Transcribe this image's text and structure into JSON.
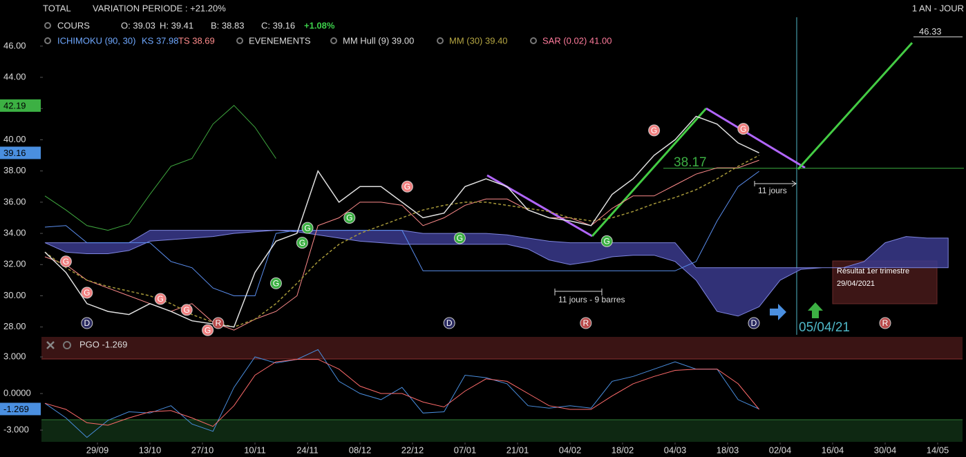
{
  "header": {
    "title": "TOTAL",
    "variation": "VARIATION PERIODE : +21.20%",
    "period": "1 AN - JOUR",
    "cours": "COURS",
    "open": "O: 39.03",
    "high": "H: 39.41",
    "low": "B: 38.83",
    "close": "C: 39.16",
    "change": "+1.08%",
    "ichimoku": "ICHIMOKU (90, 30)",
    "ks": "KS 37.98",
    "ts": "TS 38.69",
    "events": "EVENEMENTS",
    "hull": "MM Hull (9) 39.00",
    "mm": "MM (30) 39.40",
    "sar": "SAR (0.02) 41.00"
  },
  "chart_data": [
    {
      "type": "line",
      "xlim": [
        0,
        175
      ],
      "ylim": [
        27.5,
        47.85
      ],
      "yticks": [
        {
          "value": 28,
          "label": "28.00"
        },
        {
          "value": 30,
          "label": "30.00"
        },
        {
          "value": 32,
          "label": "32.00"
        },
        {
          "value": 34,
          "label": "34.00"
        },
        {
          "value": 36,
          "label": "36.00"
        },
        {
          "value": 38,
          "label": "38.00"
        },
        {
          "value": 40,
          "label": "40.00"
        },
        {
          "value": 42,
          "label": "42.00"
        },
        {
          "value": 44,
          "label": "44.00"
        },
        {
          "value": 46,
          "label": "46.00"
        }
      ],
      "grid": false,
      "x": [
        0,
        4,
        8,
        12,
        16,
        20,
        24,
        28,
        32,
        36,
        40,
        44,
        48,
        52,
        56,
        60,
        64,
        68,
        72,
        76,
        80,
        84,
        88,
        92,
        96,
        100,
        104,
        108,
        112,
        116,
        120,
        124,
        128,
        132,
        136,
        140,
        144,
        148,
        152,
        156,
        160,
        164,
        168,
        172
      ],
      "cloud": {
        "color": "#3a3a8c",
        "upper": [
          33.4,
          33.4,
          33.4,
          33.4,
          33.4,
          34.2,
          34.2,
          34.2,
          34.2,
          34.2,
          34.2,
          34.2,
          34.2,
          34.2,
          34.2,
          34.2,
          34.2,
          34.2,
          34.0,
          34.0,
          34.0,
          34.0,
          33.9,
          33.7,
          33.5,
          33.4,
          33.4,
          33.4,
          33.4,
          33.4,
          33.4,
          31.8,
          31.8,
          31.8,
          31.8,
          31.8,
          31.8,
          31.8,
          31.8,
          32.2,
          33.4,
          33.8,
          33.7,
          33.7
        ],
        "lower": [
          33.4,
          32.8,
          32.7,
          32.7,
          32.9,
          33.5,
          33.6,
          33.7,
          33.8,
          34.0,
          34.1,
          34.2,
          34.1,
          33.9,
          33.7,
          33.5,
          33.4,
          33.3,
          33.3,
          33.3,
          33.3,
          33.3,
          33.3,
          33.0,
          32.3,
          32.0,
          32.2,
          32.5,
          32.6,
          32.6,
          32.2,
          31.0,
          29.0,
          28.7,
          29.3,
          31.0,
          31.7,
          31.8,
          31.8,
          31.8,
          31.8,
          31.8,
          31.8,
          31.8
        ]
      },
      "series": [
        {
          "color": "#3fa83f",
          "dash": false,
          "width": 1,
          "values": [
            36.4,
            35.5,
            34.5,
            34.2,
            34.6,
            36.5,
            38.3,
            38.8,
            41.0,
            42.2,
            40.8,
            38.8,
            null,
            null,
            null,
            null,
            null,
            null,
            null,
            null,
            null,
            null,
            null,
            null,
            null,
            null,
            null,
            null,
            null,
            null,
            null,
            null,
            null,
            null,
            null,
            null,
            null,
            null,
            null,
            null,
            null,
            null,
            null,
            null
          ]
        },
        {
          "color": "#5b8ff0",
          "dash": false,
          "width": 1,
          "values": [
            34.4,
            34.5,
            33.4,
            33.4,
            33.4,
            33.4,
            32.2,
            31.8,
            30.5,
            30.0,
            30.0,
            34.0,
            34.2,
            34.2,
            34.2,
            34.2,
            34.2,
            34.2,
            31.6,
            31.6,
            31.6,
            31.6,
            31.6,
            31.6,
            31.6,
            31.6,
            31.6,
            31.6,
            31.6,
            31.6,
            31.6,
            32.2,
            34.8,
            37.0,
            37.98,
            null,
            null,
            null,
            null,
            null,
            null,
            null,
            null,
            null
          ]
        },
        {
          "color": "#ff8c8c",
          "dash": false,
          "width": 1,
          "values": [
            32.5,
            32.0,
            31.0,
            30.5,
            30.0,
            29.5,
            29.0,
            29.5,
            28.3,
            27.8,
            28.5,
            29.0,
            30.0,
            34.5,
            35.0,
            36.0,
            36.0,
            35.8,
            34.5,
            35.0,
            35.8,
            36.2,
            36.2,
            35.5,
            35.0,
            35.0,
            34.5,
            35.6,
            36.4,
            36.4,
            37.1,
            37.8,
            38.2,
            38.2,
            38.69,
            null,
            null,
            null,
            null,
            null,
            null,
            null,
            null,
            null
          ]
        },
        {
          "color": "#a89a3a",
          "dash": true,
          "width": 1.5,
          "values": [
            32.8,
            31.8,
            31.0,
            30.6,
            30.3,
            30.0,
            29.5,
            28.8,
            28.3,
            28.0,
            28.5,
            29.5,
            30.8,
            32.2,
            33.3,
            34.0,
            34.5,
            35.0,
            35.5,
            35.8,
            36.0,
            36.0,
            35.8,
            35.6,
            35.4,
            35.0,
            34.8,
            35.0,
            35.4,
            35.9,
            36.3,
            36.8,
            37.5,
            38.3,
            39.0,
            null,
            null,
            null,
            null,
            null,
            null,
            null,
            null,
            null
          ]
        },
        {
          "color": "#e0e0e0",
          "dash": false,
          "width": 1.5,
          "values": [
            32.8,
            31.5,
            29.5,
            29.0,
            28.8,
            29.5,
            29.0,
            28.4,
            28.2,
            28.0,
            31.5,
            33.5,
            34.0,
            38.0,
            36.0,
            37.0,
            37.0,
            36.0,
            35.0,
            35.3,
            37.0,
            37.5,
            37.0,
            35.5,
            35.0,
            34.8,
            34.5,
            36.5,
            37.5,
            39.0,
            40.0,
            41.5,
            41.0,
            39.8,
            39.16,
            null,
            null,
            null,
            null,
            null,
            null,
            null,
            null,
            null
          ]
        }
      ],
      "events": [
        {
          "label": "G",
          "x": 4,
          "value": 32.2,
          "color": "#f08080"
        },
        {
          "label": "G",
          "x": 8,
          "value": 30.2,
          "color": "#f08080"
        },
        {
          "label": "G",
          "x": 22,
          "value": 29.8,
          "color": "#f08080"
        },
        {
          "label": "G",
          "x": 27,
          "value": 29.1,
          "color": "#f08080"
        },
        {
          "label": "G",
          "x": 31,
          "value": 27.8,
          "color": "#f08080"
        },
        {
          "label": "G",
          "x": 44,
          "value": 30.8,
          "color": "#3cb043"
        },
        {
          "label": "G",
          "x": 49,
          "value": 33.4,
          "color": "#3cb043"
        },
        {
          "label": "G",
          "x": 50,
          "value": 34.35,
          "color": "#3cb043"
        },
        {
          "label": "G",
          "x": 58,
          "value": 35.0,
          "color": "#3cb043"
        },
        {
          "label": "G",
          "x": 69,
          "value": 37.0,
          "color": "#f08080"
        },
        {
          "label": "G",
          "x": 79,
          "value": 33.7,
          "color": "#3cb043"
        },
        {
          "label": "G",
          "x": 107,
          "value": 33.5,
          "color": "#3cb043"
        },
        {
          "label": "G",
          "x": 116,
          "value": 40.6,
          "color": "#f08080"
        },
        {
          "label": "G",
          "x": 133,
          "value": 40.7,
          "color": "#f08080"
        },
        {
          "label": "D",
          "x": 8,
          "value": 28.25,
          "color": "#2a2a60"
        },
        {
          "label": "R",
          "x": 33,
          "value": 28.25,
          "color": "#b84a4a"
        },
        {
          "label": "D",
          "x": 77,
          "value": 28.25,
          "color": "#2a2a60"
        },
        {
          "label": "R",
          "x": 103,
          "value": 28.25,
          "color": "#b84a4a"
        },
        {
          "label": "D",
          "x": 135,
          "value": 28.25,
          "color": "#2a2a60"
        },
        {
          "label": "R",
          "x": 160,
          "value": 28.25,
          "color": "#b84a4a"
        }
      ],
      "badges": [
        {
          "value": 42.19,
          "color": "#3cb043"
        },
        {
          "value": 39.16,
          "color": "#4a8fe0"
        }
      ],
      "level": 38.17,
      "target": 46.33,
      "annotations": {
        "days": "11 jours",
        "days_bars": "11 jours - 9 barres",
        "date": "05/04/21",
        "tip_title": "Résultat 1er trimestre",
        "tip_date": "29/04/2021"
      }
    },
    {
      "type": "line",
      "title": "PGO -1.269",
      "xlim": [
        0,
        175
      ],
      "ylim": [
        -3.96,
        4.53
      ],
      "yticks": [
        {
          "value": -3,
          "label": "-3.000"
        },
        {
          "value": 0,
          "label": "0.0000"
        },
        {
          "value": 3,
          "label": "3.000"
        }
      ],
      "xticks": [
        {
          "value": 10,
          "label": "29/09"
        },
        {
          "value": 20,
          "label": "13/10"
        },
        {
          "value": 30,
          "label": "27/10"
        },
        {
          "value": 40,
          "label": "10/11"
        },
        {
          "value": 50,
          "label": "24/11"
        },
        {
          "value": 60,
          "label": "08/12"
        },
        {
          "value": 70,
          "label": "22/12"
        },
        {
          "value": 80,
          "label": "07/01"
        },
        {
          "value": 90,
          "label": "21/01"
        },
        {
          "value": 100,
          "label": "04/02"
        },
        {
          "value": 110,
          "label": "18/02"
        },
        {
          "value": 120,
          "label": "04/03"
        },
        {
          "value": 130,
          "label": "18/03"
        },
        {
          "value": 140,
          "label": "02/04"
        },
        {
          "value": 150,
          "label": "16/04"
        },
        {
          "value": 160,
          "label": "30/04"
        },
        {
          "value": 170,
          "label": "14/05"
        }
      ],
      "x": [
        0,
        4,
        8,
        12,
        16,
        20,
        24,
        28,
        32,
        36,
        40,
        44,
        48,
        52,
        56,
        60,
        64,
        68,
        72,
        76,
        80,
        84,
        88,
        92,
        96,
        100,
        104,
        108,
        112,
        116,
        120,
        124,
        128,
        132,
        136
      ],
      "series": [
        {
          "color": "#4a8fe0",
          "dash": false,
          "width": 1,
          "values": [
            -0.8,
            -2.0,
            -3.6,
            -2.2,
            -1.5,
            -1.6,
            -1.0,
            -2.5,
            -3.1,
            0.5,
            3.0,
            2.5,
            2.8,
            3.6,
            1.0,
            0.0,
            -0.5,
            0.5,
            -1.6,
            -1.5,
            1.5,
            1.3,
            0.8,
            -1.0,
            -1.2,
            -1.0,
            -1.2,
            1.0,
            1.4,
            2.0,
            2.6,
            2.0,
            2.0,
            -0.5,
            -1.269
          ]
        },
        {
          "color": "#ff6b6b",
          "dash": false,
          "width": 1,
          "values": [
            -0.8,
            -1.3,
            -2.4,
            -2.6,
            -2.0,
            -1.5,
            -1.4,
            -2.0,
            -2.7,
            -1.0,
            1.5,
            2.6,
            2.8,
            2.8,
            2.0,
            0.6,
            0.0,
            0.0,
            -0.7,
            -1.1,
            0.2,
            1.2,
            1.0,
            0.0,
            -1.0,
            -1.3,
            -1.3,
            -0.2,
            0.8,
            1.4,
            1.9,
            2.0,
            2.0,
            0.8,
            -1.3
          ]
        }
      ],
      "badges": [
        {
          "value": -1.269,
          "color": "#4a8fe0"
        }
      ]
    }
  ]
}
